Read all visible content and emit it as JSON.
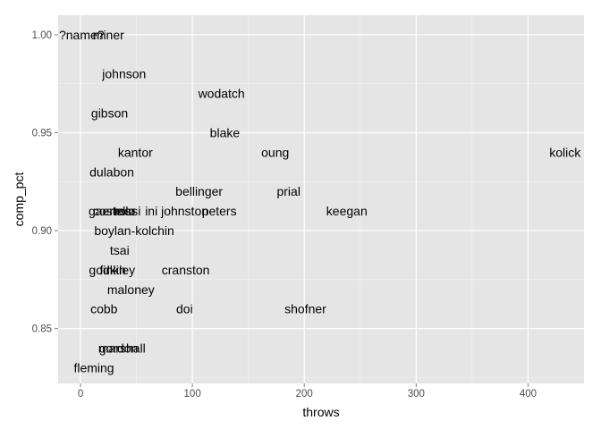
{
  "chart_data": {
    "type": "scatter",
    "mark": "text-label",
    "xlabel": "throws",
    "ylabel": "comp_pct",
    "xlim": [
      -20,
      450
    ],
    "ylim": [
      0.822,
      1.01
    ],
    "x_ticks": [
      0,
      100,
      200,
      300,
      400
    ],
    "x_tick_labels": [
      "0",
      "100",
      "200",
      "300",
      "400"
    ],
    "y_ticks": [
      0.85,
      0.9,
      0.95,
      1.0
    ],
    "y_tick_labels": [
      "0.85",
      "0.90",
      "0.95",
      "1.00"
    ],
    "grid": true,
    "legend": "none",
    "colors": {
      "panel": "#e5e5e5",
      "grid_major": "#ffffff",
      "grid_minor": "#f2f2f2",
      "text": "#000000",
      "tick_text": "#4d4d4d"
    },
    "points": [
      {
        "label": "?name?",
        "x": 1,
        "y": 1.0
      },
      {
        "label": "miner",
        "x": 25,
        "y": 1.0
      },
      {
        "label": "johnson",
        "x": 39,
        "y": 0.98
      },
      {
        "label": "wodatch",
        "x": 126,
        "y": 0.97
      },
      {
        "label": "gibson",
        "x": 26,
        "y": 0.96
      },
      {
        "label": "blake",
        "x": 129,
        "y": 0.95
      },
      {
        "label": "kantor",
        "x": 49,
        "y": 0.94
      },
      {
        "label": "oung",
        "x": 174,
        "y": 0.94
      },
      {
        "label": "kolick",
        "x": 433,
        "y": 0.94
      },
      {
        "label": "dulabon",
        "x": 28,
        "y": 0.93
      },
      {
        "label": "bellinger",
        "x": 106,
        "y": 0.92
      },
      {
        "label": "prial",
        "x": 186,
        "y": 0.92
      },
      {
        "label": "gaertner",
        "x": 28,
        "y": 0.91
      },
      {
        "label": "costello",
        "x": 30,
        "y": 0.91
      },
      {
        "label": "rossi",
        "x": 42,
        "y": 0.91
      },
      {
        "label": "ini johnston",
        "x": 86,
        "y": 0.91
      },
      {
        "label": "peters",
        "x": 124,
        "y": 0.91
      },
      {
        "label": "keegan",
        "x": 238,
        "y": 0.91
      },
      {
        "label": "boylan-kolchin",
        "x": 48,
        "y": 0.9
      },
      {
        "label": "tsai",
        "x": 35,
        "y": 0.89
      },
      {
        "label": "godkin",
        "x": 24,
        "y": 0.88
      },
      {
        "label": "finkley",
        "x": 33,
        "y": 0.88
      },
      {
        "label": "cranston",
        "x": 94,
        "y": 0.88
      },
      {
        "label": "maloney",
        "x": 45,
        "y": 0.87
      },
      {
        "label": "cobb",
        "x": 21,
        "y": 0.86
      },
      {
        "label": "doi",
        "x": 93,
        "y": 0.86
      },
      {
        "label": "shofner",
        "x": 201,
        "y": 0.86
      },
      {
        "label": "gordon",
        "x": 34,
        "y": 0.84
      },
      {
        "label": "marshall",
        "x": 37,
        "y": 0.84
      },
      {
        "label": "fleming",
        "x": 12,
        "y": 0.83
      }
    ]
  }
}
